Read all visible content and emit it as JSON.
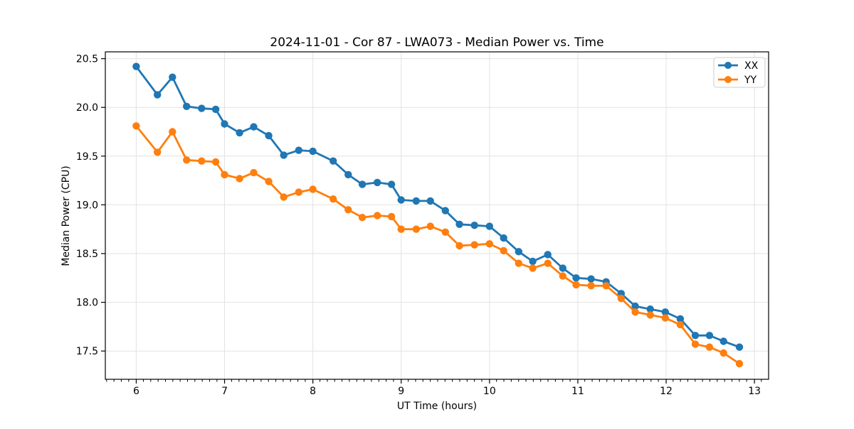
{
  "figure": {
    "title": "2024-11-01 - Cor 87 - LWA073 - Median Power vs. Time"
  },
  "chart_data": {
    "type": "line",
    "title": "2024-11-01 - Cor 87 - LWA073 - Median Power vs. Time",
    "xlabel": "UT Time (hours)",
    "ylabel": "Median Power (CPU)",
    "xlim": [
      5.65,
      13.16
    ],
    "ylim": [
      17.21,
      20.57
    ],
    "xticks": [
      6,
      7,
      8,
      9,
      10,
      11,
      12,
      13
    ],
    "yticks": [
      17.5,
      18.0,
      18.5,
      19.0,
      19.5,
      20.0,
      20.5
    ],
    "x_minor_step": 0.0833,
    "grid": true,
    "grid_color": "#e2e2e2",
    "spine_color": "#000000",
    "legend_position": "upper right",
    "x": [
      6.0,
      6.24,
      6.41,
      6.57,
      6.74,
      6.9,
      7.0,
      7.17,
      7.33,
      7.5,
      7.67,
      7.84,
      8.0,
      8.23,
      8.4,
      8.56,
      8.73,
      8.89,
      9.0,
      9.17,
      9.33,
      9.5,
      9.66,
      9.83,
      10.0,
      10.16,
      10.33,
      10.49,
      10.66,
      10.83,
      10.98,
      11.15,
      11.32,
      11.49,
      11.65,
      11.82,
      11.99,
      12.16,
      12.33,
      12.49,
      12.65,
      12.83
    ],
    "series": [
      {
        "name": "XX",
        "color": "#1f77b4",
        "values": [
          20.42,
          20.13,
          20.31,
          20.01,
          19.99,
          19.98,
          19.83,
          19.74,
          19.8,
          19.71,
          19.51,
          19.56,
          19.55,
          19.45,
          19.31,
          19.21,
          19.23,
          19.21,
          19.05,
          19.04,
          19.04,
          18.94,
          18.8,
          18.79,
          18.78,
          18.66,
          18.52,
          18.42,
          18.49,
          18.35,
          18.25,
          18.24,
          18.21,
          18.09,
          17.96,
          17.93,
          17.9,
          17.83,
          17.66,
          17.66,
          17.6,
          17.54
        ]
      },
      {
        "name": "YY",
        "color": "#ff7f0e",
        "values": [
          19.81,
          19.54,
          19.75,
          19.46,
          19.45,
          19.44,
          19.31,
          19.27,
          19.33,
          19.24,
          19.08,
          19.13,
          19.16,
          19.06,
          18.95,
          18.87,
          18.89,
          18.88,
          18.75,
          18.75,
          18.78,
          18.72,
          18.58,
          18.59,
          18.6,
          18.53,
          18.4,
          18.35,
          18.4,
          18.27,
          18.18,
          18.17,
          18.17,
          18.04,
          17.9,
          17.87,
          17.84,
          17.77,
          17.57,
          17.54,
          17.48,
          17.37
        ]
      }
    ]
  }
}
